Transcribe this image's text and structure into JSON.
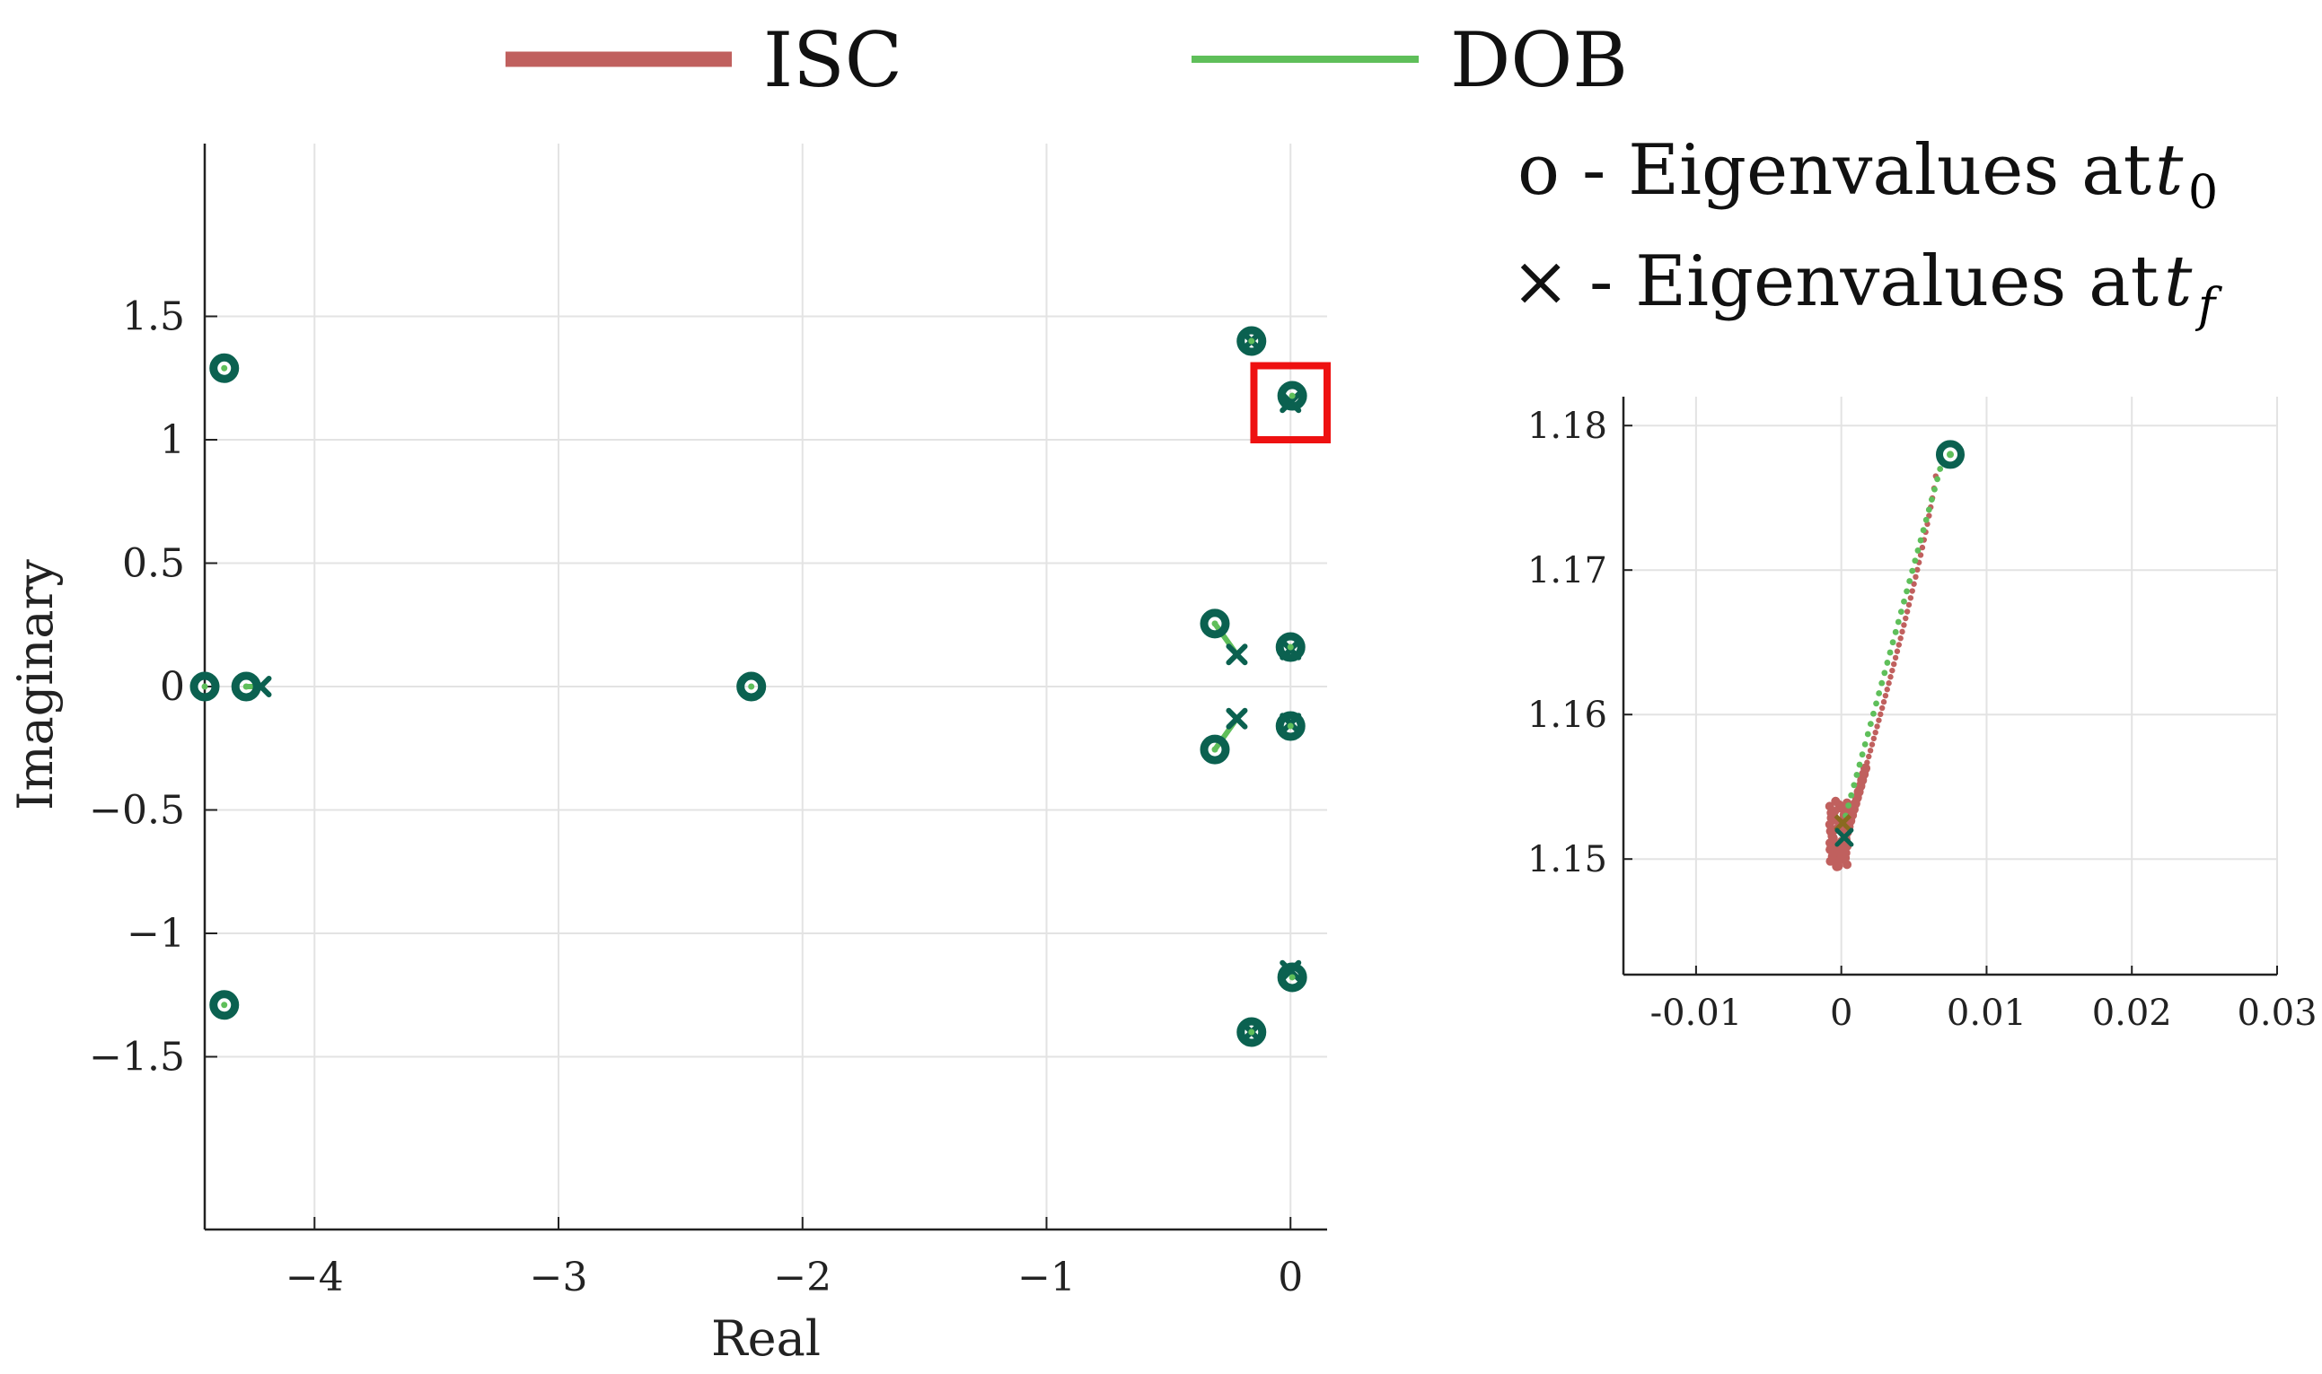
{
  "legend": {
    "entries": [
      {
        "label": "ISC",
        "color": "#c0605e"
      },
      {
        "label": "DOB",
        "color": "#5fbf5a"
      }
    ]
  },
  "annotations": {
    "circle_symbol": "o",
    "circle_text": "- Eigenvalues at ",
    "circle_var": "t",
    "circle_sub": "0",
    "cross_symbol": "×",
    "cross_text": "- Eigenvalues at ",
    "cross_var": "t",
    "cross_sub": "f"
  },
  "colors": {
    "marker": "#0b6150",
    "isc": "#c0605e",
    "dob": "#5fbf5a",
    "highlight": "#ee1111",
    "grid": "#e3e3e3",
    "axis": "#222222"
  },
  "chart_data": [
    {
      "type": "scatter",
      "title": "",
      "xlabel": "Real",
      "ylabel": "Imaginary",
      "xlim": [
        -4.45,
        0.15
      ],
      "ylim": [
        -2.2,
        2.2
      ],
      "xticks": [
        -4,
        -3,
        -2,
        -1,
        0
      ],
      "xtick_labels": [
        "−4",
        "−3",
        "−2",
        "−1",
        "0"
      ],
      "yticks": [
        1.5,
        1,
        0.5,
        0,
        -0.5,
        -1,
        -1.5
      ],
      "ytick_labels": [
        "1.5",
        "1",
        "0.5",
        "0",
        "−0.5",
        "−1",
        "−1.5"
      ],
      "eigenvalues_t0": [
        [
          -4.37,
          1.29
        ],
        [
          -4.37,
          -1.29
        ],
        [
          -4.45,
          0.0
        ],
        [
          -4.28,
          0.0
        ],
        [
          -2.21,
          0.0
        ],
        [
          -0.16,
          1.4
        ],
        [
          -0.16,
          -1.4
        ],
        [
          0.007,
          1.178
        ],
        [
          0.007,
          -1.178
        ],
        [
          -0.31,
          0.255
        ],
        [
          -0.31,
          -0.255
        ],
        [
          0.0,
          0.16
        ],
        [
          0.0,
          -0.16
        ]
      ],
      "eigenvalues_tf": [
        [
          -4.22,
          0.0
        ],
        [
          -0.22,
          0.13
        ],
        [
          -0.22,
          -0.13
        ],
        [
          0.0,
          1.152
        ],
        [
          0.0,
          -1.152
        ],
        [
          -0.16,
          1.4
        ],
        [
          -0.16,
          -1.4
        ],
        [
          0.0,
          0.15
        ],
        [
          0.0,
          -0.15
        ]
      ],
      "trajectories": [
        {
          "series": "DOB",
          "from": [
            -0.31,
            0.255
          ],
          "to": [
            -0.22,
            0.13
          ]
        },
        {
          "series": "DOB",
          "from": [
            -0.31,
            -0.255
          ],
          "to": [
            -0.22,
            -0.13
          ]
        },
        {
          "series": "DOB",
          "from": [
            -4.28,
            0.0
          ],
          "to": [
            -4.22,
            0.0
          ]
        }
      ],
      "highlight_box": {
        "x": [
          -0.15,
          0.15
        ],
        "y": [
          1.0,
          1.3
        ]
      }
    },
    {
      "type": "scatter",
      "title": "",
      "xlabel": "",
      "ylabel": "",
      "xlim": [
        -0.015,
        0.03
      ],
      "ylim": [
        1.142,
        1.182
      ],
      "xticks": [
        -0.01,
        0,
        0.01,
        0.02,
        0.03
      ],
      "xtick_labels": [
        "-0.01",
        "0",
        "0.01",
        "0.02",
        "0.03"
      ],
      "yticks": [
        1.18,
        1.17,
        1.16,
        1.15
      ],
      "ytick_labels": [
        "1.18",
        "1.17",
        "1.16",
        "1.15"
      ],
      "eigenvalue_t0": [
        0.0075,
        1.178
      ],
      "eigenvalue_tf_isc": [
        0.0001,
        1.1525
      ],
      "eigenvalue_tf_dob": [
        0.0002,
        1.1515
      ],
      "series": [
        {
          "name": "ISC",
          "start": [
            0.0065,
            1.1765
          ],
          "end": [
            -0.0003,
            1.1495
          ],
          "points": 60
        },
        {
          "name": "DOB",
          "start": [
            0.0068,
            1.177
          ],
          "end": [
            0.0003,
            1.153
          ],
          "points": 35
        }
      ]
    }
  ]
}
